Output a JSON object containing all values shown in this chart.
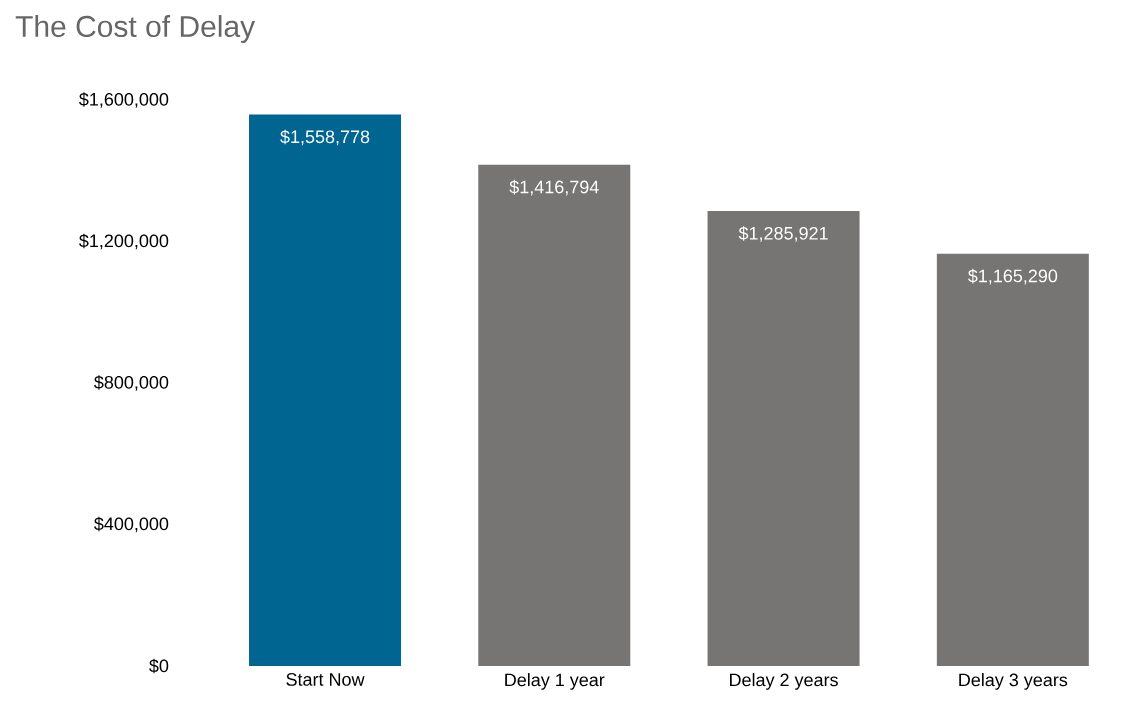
{
  "chart_data": {
    "type": "bar",
    "title": "The Cost of Delay",
    "categories": [
      "Start Now",
      "Delay 1 year",
      "Delay 2 years",
      "Delay 3 years"
    ],
    "values": [
      1558778,
      1416794,
      1285921,
      1165290
    ],
    "colors": [
      "#006590",
      "#767574",
      "#767574",
      "#767574"
    ],
    "value_labels": [
      "$1,558,778",
      "$1,416,794",
      "$1,285,921",
      "$1,165,290"
    ],
    "ylim": [
      0,
      1600000
    ],
    "yticks": [
      {
        "value": 0,
        "label": "$0"
      },
      {
        "value": 400000,
        "label": "$400,000"
      },
      {
        "value": 800000,
        "label": "$800,000"
      },
      {
        "value": 1200000,
        "label": "$1,200,000"
      },
      {
        "value": 1600000,
        "label": "$1,600,000"
      }
    ],
    "grid": false
  }
}
